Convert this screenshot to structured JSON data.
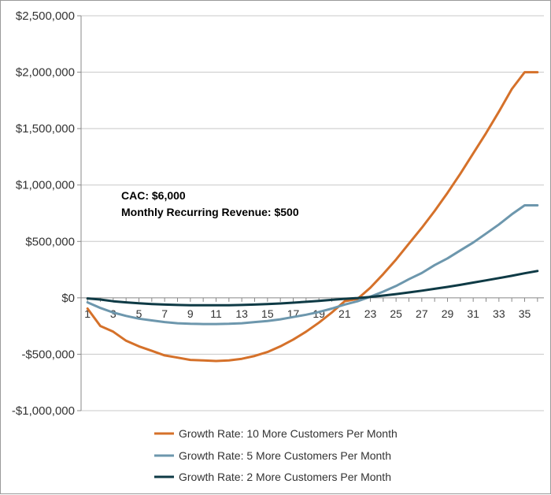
{
  "chart_data": {
    "type": "line",
    "title": "",
    "xlabel": "",
    "ylabel": "",
    "x": [
      1,
      2,
      3,
      4,
      5,
      6,
      7,
      8,
      9,
      10,
      11,
      12,
      13,
      14,
      15,
      16,
      17,
      18,
      19,
      20,
      21,
      22,
      23,
      24,
      25,
      26,
      27,
      28,
      29,
      30,
      31,
      32,
      33,
      34,
      35,
      36
    ],
    "x_tick_labels": [
      "1",
      "3",
      "5",
      "7",
      "9",
      "11",
      "13",
      "15",
      "17",
      "19",
      "21",
      "23",
      "25",
      "27",
      "29",
      "31",
      "33",
      "35"
    ],
    "ylim": [
      -1000000,
      2500000
    ],
    "y_tick_values": [
      2500000,
      2000000,
      1500000,
      1000000,
      500000,
      0,
      -500000,
      -1000000
    ],
    "y_tick_labels": [
      "$2,500,000",
      "$2,000,000",
      "$1,500,000",
      "$1,000,000",
      "$500,000",
      "$0",
      "-$500,000",
      "-$1,000,000"
    ],
    "grid": "horizontal",
    "legend_position": "bottom",
    "annotations": [
      "CAC: $6,000",
      "Monthly Recurring Revenue: $500"
    ],
    "series": [
      {
        "name": "Growth Rate: 10 More Customers Per Month",
        "color": "#d5712a",
        "values": [
          -95000,
          -250000,
          -300000,
          -380000,
          -430000,
          -470000,
          -510000,
          -530000,
          -550000,
          -555000,
          -560000,
          -555000,
          -540000,
          -515000,
          -480000,
          -430000,
          -370000,
          -300000,
          -220000,
          -130000,
          -30000,
          -10000,
          90000,
          210000,
          340000,
          480000,
          620000,
          770000,
          930000,
          1100000,
          1280000,
          1460000,
          1650000,
          1850000,
          2000000,
          2000000
        ]
      },
      {
        "name": "Growth Rate: 5 More Customers Per Month",
        "color": "#6d97ad",
        "values": [
          -40000,
          -90000,
          -130000,
          -160000,
          -185000,
          -200000,
          -215000,
          -225000,
          -230000,
          -232000,
          -232000,
          -230000,
          -225000,
          -215000,
          -205000,
          -190000,
          -170000,
          -150000,
          -125000,
          -95000,
          -60000,
          -30000,
          10000,
          55000,
          105000,
          165000,
          220000,
          290000,
          350000,
          420000,
          490000,
          570000,
          650000,
          740000,
          820000,
          820000
        ]
      },
      {
        "name": "Growth Rate: 2 More Customers Per Month",
        "color": "#0e3a45",
        "values": [
          -5000,
          -15000,
          -30000,
          -40000,
          -48000,
          -55000,
          -60000,
          -63000,
          -65000,
          -66000,
          -66000,
          -65000,
          -63000,
          -60000,
          -55000,
          -50000,
          -43000,
          -35000,
          -27000,
          -18000,
          -9000,
          -2000,
          8000,
          20000,
          33000,
          48000,
          63000,
          80000,
          97000,
          115000,
          135000,
          155000,
          175000,
          195000,
          218000,
          238000
        ]
      }
    ]
  }
}
